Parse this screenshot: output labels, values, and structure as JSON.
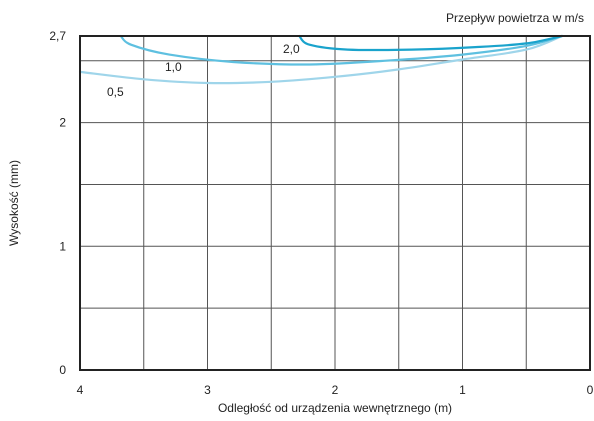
{
  "chart_data": {
    "type": "line",
    "legend_title": "Przepływ powietrza w m/s",
    "xlabel": "Odległość od urządzenia wewnętrznego (m)",
    "ylabel": "Wysokość (mm)",
    "x_reversed": true,
    "xlim": [
      4,
      0
    ],
    "ylim": [
      0,
      2.7
    ],
    "x_ticks": [
      4,
      3,
      2,
      1,
      0
    ],
    "x_tick_labels": [
      "4",
      "3",
      "2",
      "1",
      "0"
    ],
    "y_ticks": [
      0,
      1,
      2,
      2.7
    ],
    "y_tick_labels": [
      "0",
      "1",
      "2",
      "2,7"
    ],
    "grid": true,
    "series": [
      {
        "name": "0,5",
        "color": "#9fd5ea",
        "points": [
          [
            4.0,
            2.41
          ],
          [
            3.5,
            2.35
          ],
          [
            3.0,
            2.32
          ],
          [
            2.5,
            2.33
          ],
          [
            2.0,
            2.37
          ],
          [
            1.5,
            2.43
          ],
          [
            1.0,
            2.51
          ],
          [
            0.5,
            2.59
          ],
          [
            0.22,
            2.7
          ]
        ]
      },
      {
        "name": "1,0",
        "color": "#5ec0e0",
        "points": [
          [
            3.68,
            2.7
          ],
          [
            3.6,
            2.63
          ],
          [
            3.3,
            2.55
          ],
          [
            2.8,
            2.49
          ],
          [
            2.2,
            2.47
          ],
          [
            1.6,
            2.5
          ],
          [
            1.0,
            2.55
          ],
          [
            0.5,
            2.62
          ],
          [
            0.22,
            2.7
          ]
        ]
      },
      {
        "name": "2,0",
        "color": "#1aa3cc",
        "points": [
          [
            2.28,
            2.7
          ],
          [
            2.2,
            2.63
          ],
          [
            1.9,
            2.59
          ],
          [
            1.4,
            2.59
          ],
          [
            0.9,
            2.61
          ],
          [
            0.5,
            2.64
          ],
          [
            0.22,
            2.7
          ]
        ]
      }
    ]
  }
}
